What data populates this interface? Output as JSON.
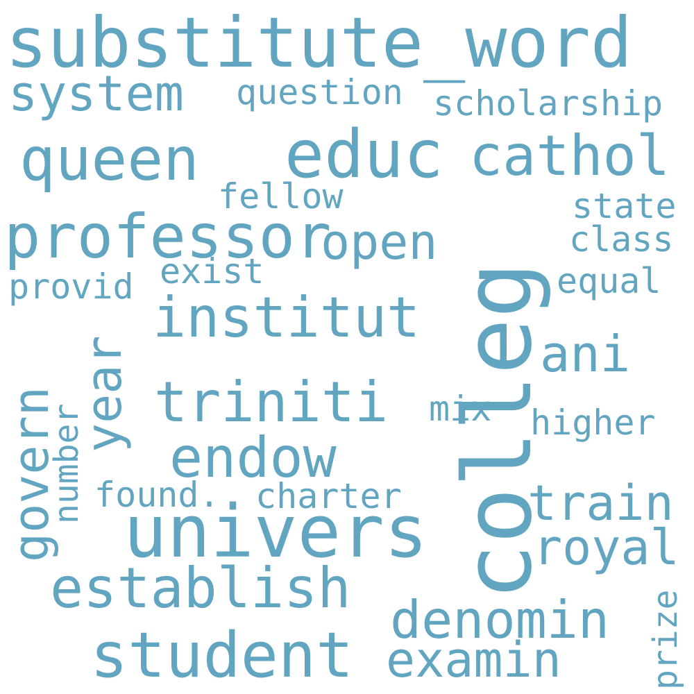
{
  "word_color": "#62a5c1",
  "background_color": "#ffffff",
  "words": {
    "substitute_word": "substitute_word",
    "colleg": "colleg",
    "educ": "educ",
    "univers": "univers",
    "student": "student",
    "queen": "queen",
    "professor": "professor",
    "cathol": "cathol",
    "institut": "institut",
    "triniti": "triniti",
    "establish": "establish",
    "endow": "endow",
    "system": "system",
    "denomin": "denomin",
    "examin": "examin",
    "open": "open",
    "year": "year",
    "govern": "govern",
    "royal": "royal",
    "train": "train",
    "ani": "ani",
    "question": "question",
    "scholarship": "scholarship",
    "fellow": "fellow",
    "state": "state",
    "class": "class",
    "provid": "provid",
    "exist": "exist",
    "equal": "equal",
    "higher": "higher",
    "found": "found.",
    "charter": "charter",
    "mix": "mix",
    "number": "number",
    "prize": "prize"
  }
}
